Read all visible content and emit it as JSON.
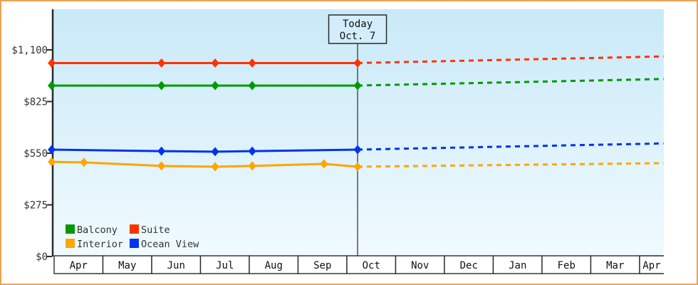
{
  "page": {
    "border_color": "#eaa353",
    "background": "#ffffff"
  },
  "chart_data": {
    "type": "line",
    "description": "Cruise cabin price history by month with projected (dotted) future prices",
    "x_unit": "months since April (0 = Apr)",
    "x_axis": {
      "months": [
        "Apr",
        "May",
        "Jun",
        "Jul",
        "Aug",
        "Sep",
        "Oct",
        "Nov",
        "Dec",
        "Jan",
        "Feb",
        "Mar",
        "Apr"
      ]
    },
    "y_axis": {
      "tick_values": [
        0,
        275,
        550,
        825,
        1100
      ],
      "tick_labels": [
        "$0",
        "$275",
        "$550",
        "$825",
        "$1,100"
      ],
      "ylim": [
        0,
        1310
      ]
    },
    "today": {
      "line1": "Today",
      "line2": "Oct. 7",
      "m": 6.22
    },
    "series": [
      {
        "name": "Suite",
        "color": "#ff3300",
        "points": [
          {
            "m": -0.05,
            "v": 1030
          },
          {
            "m": 2.2,
            "v": 1030
          },
          {
            "m": 3.3,
            "v": 1030
          },
          {
            "m": 4.06,
            "v": 1030
          },
          {
            "m": 6.22,
            "v": 1030
          }
        ],
        "projection": {
          "m": 12.49,
          "v": 1065
        }
      },
      {
        "name": "Balcony",
        "color": "#009a00",
        "points": [
          {
            "m": -0.05,
            "v": 910
          },
          {
            "m": 2.2,
            "v": 910
          },
          {
            "m": 3.3,
            "v": 910
          },
          {
            "m": 4.06,
            "v": 910
          },
          {
            "m": 6.22,
            "v": 910
          }
        ],
        "projection": {
          "m": 12.49,
          "v": 945
        }
      },
      {
        "name": "Ocean View",
        "color": "#0033ee",
        "points": [
          {
            "m": -0.05,
            "v": 569
          },
          {
            "m": 2.2,
            "v": 561
          },
          {
            "m": 3.3,
            "v": 558
          },
          {
            "m": 4.06,
            "v": 561
          },
          {
            "m": 6.22,
            "v": 569
          }
        ],
        "projection": {
          "m": 12.49,
          "v": 602
        }
      },
      {
        "name": "Interior",
        "color": "#ffa500",
        "points": [
          {
            "m": -0.05,
            "v": 504
          },
          {
            "m": 0.61,
            "v": 501
          },
          {
            "m": 2.2,
            "v": 482
          },
          {
            "m": 3.3,
            "v": 478
          },
          {
            "m": 4.06,
            "v": 482
          },
          {
            "m": 5.53,
            "v": 493
          },
          {
            "m": 6.22,
            "v": 478
          }
        ],
        "projection": {
          "m": 12.49,
          "v": 497
        }
      }
    ],
    "legend": [
      {
        "label": "Balcony",
        "color": "#009a00"
      },
      {
        "label": "Suite",
        "color": "#ff3300"
      },
      {
        "label": "Interior",
        "color": "#ffa500"
      },
      {
        "label": "Ocean View",
        "color": "#0033ee"
      }
    ],
    "style": {
      "axis_color": "#2b2b2b",
      "text_color": "#333333",
      "plot_gradient_top": "#c9e9f8",
      "plot_gradient_bottom": "#f0fafe",
      "month_cell_fill": "#ffffff",
      "today_box_fill": "#d3edfa"
    }
  }
}
